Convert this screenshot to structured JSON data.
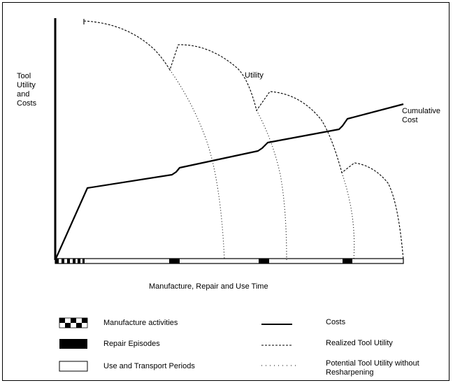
{
  "y_axis_label": "Tool\nUtility\nand\nCosts",
  "x_axis_label": "Manufacture, Repair and Use Time",
  "curve_labels": {
    "utility": "Utility",
    "cumulative_cost": "Cumulative\nCost"
  },
  "legend": {
    "manufacture": "Manufacture activities",
    "repair": "Repair Episodes",
    "use_transport": "Use and Transport Periods",
    "costs": "Costs",
    "realized": "Realized Tool Utility",
    "potential": "Potential Tool Utility without\nResharpening"
  }
}
